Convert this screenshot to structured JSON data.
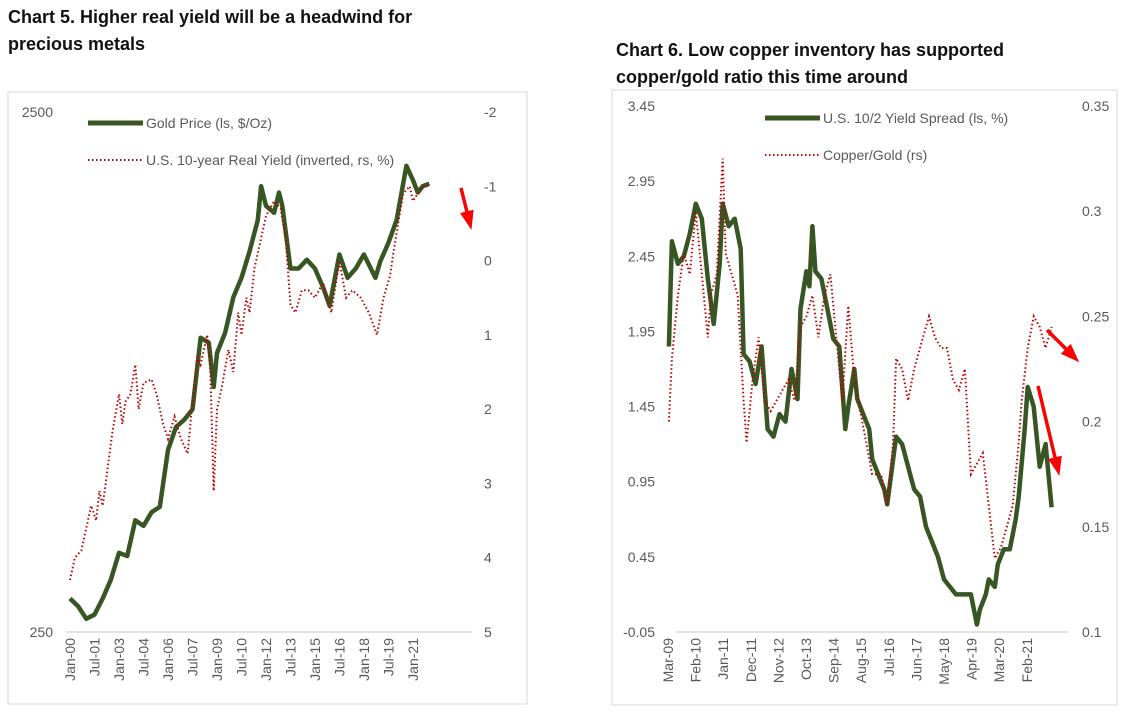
{
  "chart_data": [
    {
      "type": "line",
      "title": "Chart 5. Higher real yield will be a headwind for precious metals",
      "left_axis": {
        "scale": "log",
        "range": [
          250,
          2500
        ],
        "ticks": [
          "2500",
          "250"
        ]
      },
      "right_axis": {
        "inverted": true,
        "range": [
          -2,
          5
        ],
        "ticks": [
          "-2",
          "-1",
          "0",
          "1",
          "2",
          "3",
          "4",
          "5"
        ]
      },
      "x_ticks": [
        "Jan-00",
        "Jul-01",
        "Jan-03",
        "Jul-04",
        "Jan-06",
        "Jul-07",
        "Jan-09",
        "Jul-10",
        "Jan-12",
        "Jul-13",
        "Jan-15",
        "Jul-16",
        "Jan-18",
        "Jul-19",
        "Jan-21"
      ],
      "legend": "top-center",
      "annotation": "red arrow pointing down at end of series",
      "series": [
        {
          "name": "Gold Price (ls, $/Oz)",
          "axis": "left",
          "color": "#375623",
          "style": "solid",
          "x": [
            2000.0,
            2000.5,
            2001.0,
            2001.5,
            2002.0,
            2002.5,
            2003.0,
            2003.5,
            2004.0,
            2004.5,
            2005.0,
            2005.5,
            2006.0,
            2006.5,
            2007.0,
            2007.5,
            2008.0,
            2008.5,
            2008.8,
            2009.0,
            2009.5,
            2010.0,
            2010.5,
            2011.0,
            2011.5,
            2011.7,
            2012.0,
            2012.5,
            2012.8,
            2013.0,
            2013.5,
            2014.0,
            2014.5,
            2015.0,
            2015.5,
            2015.9,
            2016.5,
            2017.0,
            2017.5,
            2018.0,
            2018.7,
            2019.0,
            2019.5,
            2020.0,
            2020.6,
            2021.0,
            2021.3,
            2021.6,
            2022.0
          ],
          "y": [
            290,
            280,
            265,
            270,
            290,
            315,
            355,
            350,
            410,
            400,
            425,
            435,
            560,
            620,
            640,
            670,
            920,
            900,
            740,
            860,
            940,
            1100,
            1200,
            1350,
            1550,
            1800,
            1650,
            1600,
            1750,
            1650,
            1250,
            1250,
            1300,
            1250,
            1150,
            1060,
            1330,
            1200,
            1250,
            1330,
            1200,
            1290,
            1400,
            1550,
            1970,
            1850,
            1750,
            1800,
            1820
          ]
        },
        {
          "name": "U.S. 10-year Real Yield (inverted, rs, %)",
          "axis": "right",
          "color": "#c00000",
          "style": "dotted",
          "x": [
            2000.0,
            2000.3,
            2000.7,
            2001.0,
            2001.3,
            2001.6,
            2001.8,
            2002.0,
            2002.3,
            2002.6,
            2003.0,
            2003.2,
            2003.4,
            2003.7,
            2004.0,
            2004.2,
            2004.5,
            2005.0,
            2005.3,
            2005.7,
            2006.0,
            2006.4,
            2006.8,
            2007.2,
            2007.5,
            2007.8,
            2008.0,
            2008.4,
            2008.6,
            2008.8,
            2009.0,
            2009.3,
            2009.7,
            2010.0,
            2010.3,
            2010.5,
            2010.8,
            2011.0,
            2011.3,
            2011.7,
            2012.0,
            2012.5,
            2012.9,
            2013.2,
            2013.5,
            2013.8,
            2014.2,
            2014.6,
            2015.0,
            2015.5,
            2016.0,
            2016.5,
            2016.9,
            2017.3,
            2017.8,
            2018.3,
            2018.8,
            2019.2,
            2019.6,
            2019.8,
            2020.1,
            2020.4,
            2020.8,
            2021.0,
            2021.3,
            2021.6,
            2021.9
          ],
          "y": [
            4.3,
            4.0,
            3.9,
            3.6,
            3.3,
            3.5,
            3.1,
            3.3,
            2.8,
            2.3,
            1.8,
            2.2,
            1.9,
            1.8,
            1.4,
            2.0,
            1.65,
            1.6,
            1.8,
            2.2,
            2.4,
            2.1,
            2.4,
            2.6,
            1.9,
            1.3,
            1.4,
            1.0,
            1.5,
            3.1,
            2.0,
            1.7,
            1.2,
            1.5,
            0.7,
            1.0,
            0.5,
            0.7,
            0.1,
            -0.3,
            -0.6,
            -0.8,
            -0.7,
            -0.3,
            0.6,
            0.7,
            0.4,
            0.4,
            0.5,
            0.3,
            0.7,
            0.0,
            0.5,
            0.4,
            0.5,
            0.7,
            1.0,
            0.5,
            0.2,
            -0.1,
            -0.5,
            -0.9,
            -1.0,
            -0.8,
            -0.9,
            -1.0,
            -1.0
          ]
        }
      ]
    },
    {
      "type": "line",
      "title": "Chart 6. Low copper inventory has supported copper/gold ratio this time around",
      "left_axis": {
        "range": [
          -0.05,
          3.45
        ],
        "ticks": [
          "3.45",
          "2.95",
          "2.45",
          "1.95",
          "1.45",
          "0.95",
          "0.45",
          "-0.05"
        ]
      },
      "right_axis": {
        "range": [
          0.1,
          0.35
        ],
        "ticks": [
          "0.35",
          "0.3",
          "0.25",
          "0.2",
          "0.15",
          "0.1"
        ]
      },
      "x_ticks": [
        "Mar-09",
        "Feb-10",
        "Jan-11",
        "Dec-11",
        "Nov-12",
        "Oct-13",
        "Sep-14",
        "Aug-15",
        "Jul-16",
        "Jun-17",
        "May-18",
        "Apr-19",
        "Mar-20",
        "Feb-21"
      ],
      "legend": "top-center",
      "annotation": "red arrows: right for copper/gold, down for yield spread",
      "series": [
        {
          "name": "U.S. 10/2 Yield Spread (ls, %)",
          "axis": "left",
          "color": "#375623",
          "style": "solid",
          "x": [
            2009.2,
            2009.3,
            2009.5,
            2009.7,
            2009.9,
            2010.1,
            2010.3,
            2010.5,
            2010.7,
            2010.9,
            2011.0,
            2011.2,
            2011.4,
            2011.6,
            2011.7,
            2011.9,
            2012.1,
            2012.3,
            2012.5,
            2012.7,
            2012.9,
            2013.1,
            2013.3,
            2013.5,
            2013.6,
            2013.8,
            2013.9,
            2014.0,
            2014.1,
            2014.3,
            2014.5,
            2014.7,
            2014.9,
            2015.1,
            2015.2,
            2015.4,
            2015.5,
            2015.7,
            2015.9,
            2016.0,
            2016.2,
            2016.4,
            2016.5,
            2016.6,
            2016.8,
            2017.0,
            2017.2,
            2017.4,
            2017.6,
            2017.8,
            2018.0,
            2018.2,
            2018.4,
            2018.6,
            2018.8,
            2019.0,
            2019.2,
            2019.3,
            2019.5,
            2019.6,
            2019.8,
            2019.9,
            2020.1,
            2020.2,
            2020.4,
            2020.6,
            2020.8,
            2020.9,
            2021.1,
            2021.2,
            2021.4,
            2021.6,
            2021.8,
            2022.0
          ],
          "y": [
            1.85,
            2.55,
            2.4,
            2.45,
            2.6,
            2.8,
            2.7,
            2.3,
            2.0,
            2.4,
            2.8,
            2.65,
            2.7,
            2.5,
            1.8,
            1.75,
            1.6,
            1.85,
            1.3,
            1.25,
            1.4,
            1.35,
            1.7,
            1.5,
            2.1,
            2.35,
            2.25,
            2.65,
            2.35,
            2.3,
            2.1,
            1.9,
            1.85,
            1.3,
            1.45,
            1.7,
            1.5,
            1.4,
            1.3,
            1.1,
            1.0,
            0.9,
            0.8,
            0.95,
            1.25,
            1.2,
            1.05,
            0.9,
            0.85,
            0.65,
            0.55,
            0.45,
            0.3,
            0.25,
            0.2,
            0.2,
            0.2,
            0.2,
            0.0,
            0.1,
            0.2,
            0.3,
            0.25,
            0.4,
            0.5,
            0.5,
            0.7,
            0.85,
            1.3,
            1.58,
            1.45,
            1.05,
            1.2,
            0.78
          ]
        },
        {
          "name": "Copper/Gold (rs)",
          "axis": "right",
          "color": "#c00000",
          "style": "dotted",
          "x": [
            2009.2,
            2009.3,
            2009.5,
            2009.7,
            2009.9,
            2010.1,
            2010.3,
            2010.5,
            2010.6,
            2010.8,
            2011.0,
            2011.1,
            2011.3,
            2011.5,
            2011.7,
            2011.8,
            2012.0,
            2012.2,
            2012.4,
            2012.6,
            2012.8,
            2013.0,
            2013.2,
            2013.4,
            2013.6,
            2013.8,
            2014.0,
            2014.2,
            2014.4,
            2014.6,
            2014.8,
            2015.0,
            2015.2,
            2015.4,
            2015.6,
            2015.8,
            2016.0,
            2016.3,
            2016.5,
            2016.7,
            2016.8,
            2017.0,
            2017.2,
            2017.4,
            2017.7,
            2017.9,
            2018.1,
            2018.3,
            2018.5,
            2018.7,
            2018.9,
            2019.1,
            2019.3,
            2019.5,
            2019.7,
            2019.9,
            2020.1,
            2020.3,
            2020.5,
            2020.7,
            2020.9,
            2021.0,
            2021.2,
            2021.4,
            2021.6,
            2021.8,
            2022.0
          ],
          "y": [
            0.2,
            0.23,
            0.26,
            0.28,
            0.27,
            0.3,
            0.27,
            0.24,
            0.26,
            0.27,
            0.325,
            0.28,
            0.27,
            0.26,
            0.21,
            0.19,
            0.22,
            0.24,
            0.21,
            0.205,
            0.21,
            0.215,
            0.22,
            0.21,
            0.245,
            0.25,
            0.26,
            0.24,
            0.26,
            0.27,
            0.24,
            0.21,
            0.255,
            0.22,
            0.205,
            0.19,
            0.175,
            0.175,
            0.16,
            0.19,
            0.23,
            0.225,
            0.21,
            0.225,
            0.24,
            0.25,
            0.24,
            0.235,
            0.235,
            0.22,
            0.215,
            0.225,
            0.175,
            0.18,
            0.185,
            0.16,
            0.135,
            0.14,
            0.15,
            0.16,
            0.19,
            0.21,
            0.235,
            0.25,
            0.245,
            0.235,
            0.245
          ]
        }
      ]
    }
  ]
}
